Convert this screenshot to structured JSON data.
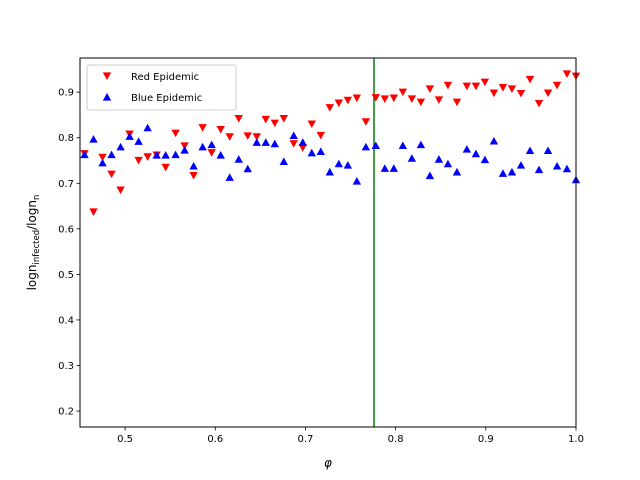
{
  "chart_data": {
    "type": "scatter",
    "xlabel": "φ",
    "ylabel": {
      "parts": [
        {
          "text": "logn",
          "sub": false
        },
        {
          "text": "infected",
          "sub": true
        },
        {
          "text": "/logn",
          "sub": false
        },
        {
          "text": "n",
          "sub": true
        }
      ]
    },
    "xlim": [
      0.45,
      1.0
    ],
    "ylim": [
      0.165,
      0.975
    ],
    "xticks": [
      0.5,
      0.6,
      0.7,
      0.8,
      0.9,
      1.0
    ],
    "xtick_labels": [
      "0.5",
      "0.6",
      "0.7",
      "0.8",
      "0.9",
      "1.0"
    ],
    "yticks": [
      0.2,
      0.3,
      0.4,
      0.5,
      0.6,
      0.7,
      0.8,
      0.9
    ],
    "ytick_labels": [
      "0.2",
      "0.3",
      "0.4",
      "0.5",
      "0.6",
      "0.7",
      "0.8",
      "0.9"
    ],
    "grid": false,
    "legend_position": "top-left",
    "vline": {
      "x": 0.776,
      "color": "#008000"
    },
    "series": [
      {
        "name": "Red Epidemic",
        "marker": "triangle-down",
        "color": "#ff0000",
        "x": [
          0.455,
          0.465,
          0.475,
          0.485,
          0.495,
          0.505,
          0.515,
          0.525,
          0.535,
          0.545,
          0.556,
          0.566,
          0.576,
          0.586,
          0.596,
          0.606,
          0.616,
          0.626,
          0.636,
          0.646,
          0.656,
          0.666,
          0.676,
          0.687,
          0.697,
          0.707,
          0.717,
          0.727,
          0.737,
          0.747,
          0.757,
          0.767,
          0.778,
          0.788,
          0.798,
          0.808,
          0.818,
          0.828,
          0.838,
          0.848,
          0.858,
          0.868,
          0.879,
          0.889,
          0.899,
          0.909,
          0.919,
          0.929,
          0.939,
          0.949,
          0.959,
          0.969,
          0.979,
          0.99,
          1.0
        ],
        "y": [
          0.765,
          0.637,
          0.757,
          0.72,
          0.685,
          0.808,
          0.75,
          0.758,
          0.762,
          0.735,
          0.81,
          0.782,
          0.717,
          0.822,
          0.767,
          0.818,
          0.802,
          0.842,
          0.804,
          0.802,
          0.84,
          0.832,
          0.842,
          0.787,
          0.778,
          0.83,
          0.805,
          0.866,
          0.876,
          0.882,
          0.887,
          0.835,
          0.888,
          0.885,
          0.887,
          0.9,
          0.885,
          0.878,
          0.907,
          0.883,
          0.915,
          0.878,
          0.913,
          0.913,
          0.922,
          0.898,
          0.91,
          0.907,
          0.897,
          0.928,
          0.875,
          0.898,
          0.915,
          0.94,
          0.935
        ]
      },
      {
        "name": "Blue Epidemic",
        "marker": "triangle-up",
        "color": "#0000ff",
        "x": [
          0.455,
          0.465,
          0.475,
          0.485,
          0.495,
          0.505,
          0.515,
          0.525,
          0.535,
          0.545,
          0.556,
          0.566,
          0.576,
          0.586,
          0.596,
          0.606,
          0.616,
          0.626,
          0.636,
          0.646,
          0.656,
          0.666,
          0.676,
          0.687,
          0.697,
          0.707,
          0.717,
          0.727,
          0.737,
          0.747,
          0.757,
          0.767,
          0.778,
          0.788,
          0.798,
          0.808,
          0.818,
          0.828,
          0.838,
          0.848,
          0.858,
          0.868,
          0.879,
          0.889,
          0.899,
          0.909,
          0.919,
          0.929,
          0.939,
          0.949,
          0.959,
          0.969,
          0.979,
          0.99,
          1.0
        ],
        "y": [
          0.763,
          0.797,
          0.745,
          0.763,
          0.78,
          0.803,
          0.792,
          0.822,
          0.762,
          0.762,
          0.763,
          0.773,
          0.738,
          0.78,
          0.785,
          0.762,
          0.713,
          0.753,
          0.732,
          0.79,
          0.79,
          0.787,
          0.748,
          0.805,
          0.79,
          0.767,
          0.77,
          0.725,
          0.743,
          0.74,
          0.705,
          0.78,
          0.783,
          0.733,
          0.733,
          0.783,
          0.755,
          0.785,
          0.717,
          0.753,
          0.743,
          0.725,
          0.775,
          0.765,
          0.752,
          0.793,
          0.722,
          0.725,
          0.74,
          0.772,
          0.73,
          0.772,
          0.738,
          0.732,
          0.708
        ]
      }
    ]
  }
}
